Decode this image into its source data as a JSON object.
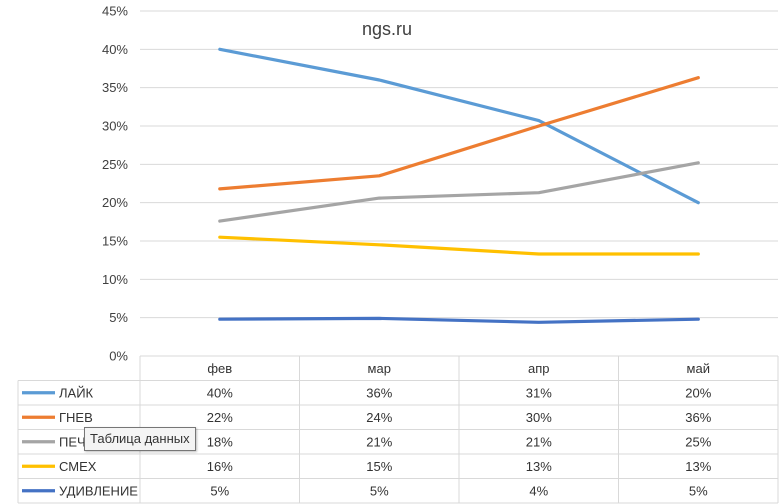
{
  "chart_data": {
    "type": "line",
    "title": "ngs.ru",
    "categories": [
      "фев",
      "мар",
      "апр",
      "май"
    ],
    "y_ticks": [
      "0%",
      "5%",
      "10%",
      "15%",
      "20%",
      "25%",
      "30%",
      "35%",
      "40%",
      "45%"
    ],
    "ylim": [
      0,
      45
    ],
    "grid": true,
    "legend": "data-table",
    "series": [
      {
        "name": "ЛАЙК",
        "color": "#5b9bd5",
        "values": [
          40,
          36,
          30.7,
          20
        ],
        "labels": [
          "40%",
          "36%",
          "31%",
          "20%"
        ]
      },
      {
        "name": "ГНЕВ",
        "color": "#ed7d31",
        "values": [
          21.8,
          23.5,
          30,
          36.3
        ],
        "labels": [
          "22%",
          "24%",
          "30%",
          "36%"
        ]
      },
      {
        "name": "ПЕЧ",
        "color": "#a5a5a5",
        "values": [
          17.6,
          20.6,
          21.3,
          25.2
        ],
        "labels": [
          "18%",
          "21%",
          "21%",
          "25%"
        ]
      },
      {
        "name": "СМЕХ",
        "color": "#ffc000",
        "values": [
          15.5,
          14.5,
          13.3,
          13.3
        ],
        "labels": [
          "16%",
          "15%",
          "13%",
          "13%"
        ]
      },
      {
        "name": "УДИВЛЕНИЕ",
        "color": "#4472c4",
        "values": [
          4.8,
          4.9,
          4.4,
          4.8
        ],
        "labels": [
          "5%",
          "5%",
          "4%",
          "5%"
        ]
      }
    ]
  },
  "tooltip": {
    "text": "Таблица данных"
  }
}
